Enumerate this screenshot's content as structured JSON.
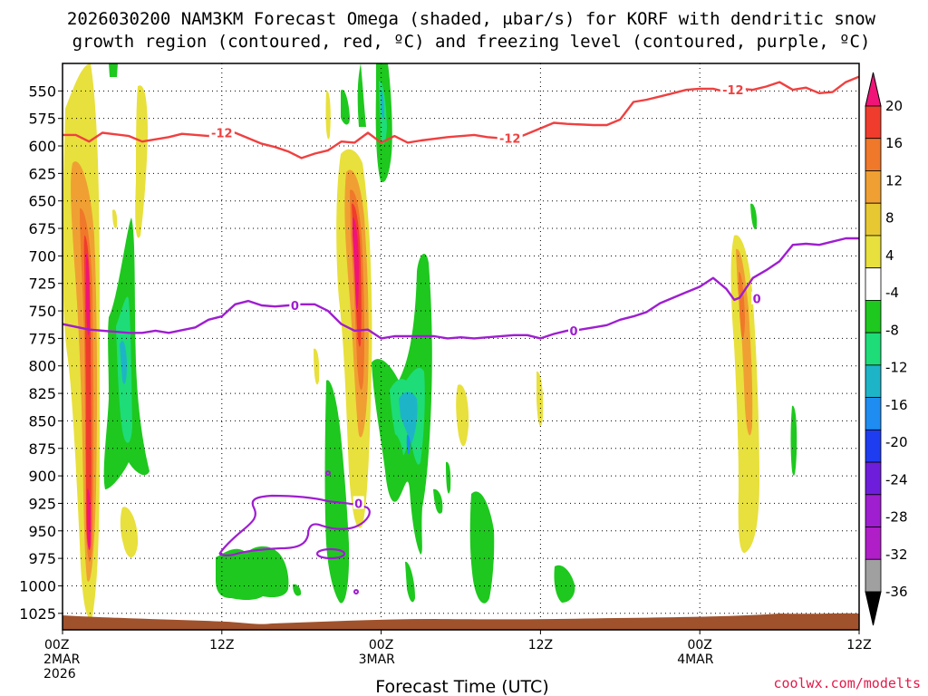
{
  "title_line1": "2026030200 NAM3KM Forecast Omega (shaded, μbar/s) for KORF with dendritic snow",
  "title_line2": "growth region (contoured, red, ºC) and freezing level (contoured, purple, ºC)",
  "credit": "coolwx.com/modelts",
  "chart_data": {
    "type": "heatmap",
    "title": "2026030200 NAM3KM Forecast Omega (shaded, μbar/s) for KORF with dendritic snow growth region (contoured, red, ºC) and freezing level (contoured, purple, ºC)",
    "xlabel": "Forecast Time (UTC)",
    "ylabel": "",
    "x_range_hours": [
      0,
      60
    ],
    "y_range_hpa": [
      1040,
      525
    ],
    "y_ticks": [
      550,
      575,
      600,
      625,
      650,
      675,
      700,
      725,
      750,
      775,
      800,
      825,
      850,
      875,
      900,
      925,
      950,
      975,
      1000,
      1025
    ],
    "x_ticks": [
      {
        "hour": 0,
        "label": "00Z",
        "sub1": "2MAR",
        "sub2": "2026"
      },
      {
        "hour": 12,
        "label": "12Z",
        "sub1": "",
        "sub2": ""
      },
      {
        "hour": 24,
        "label": "00Z",
        "sub1": "3MAR",
        "sub2": ""
      },
      {
        "hour": 36,
        "label": "12Z",
        "sub1": "",
        "sub2": ""
      },
      {
        "hour": 48,
        "label": "00Z",
        "sub1": "4MAR",
        "sub2": ""
      },
      {
        "hour": 60,
        "label": "12Z",
        "sub1": "",
        "sub2": ""
      }
    ],
    "grid": true,
    "colorbar": {
      "labels": [
        "20",
        "16",
        "12",
        "8",
        "4",
        "-4",
        "-8",
        "-12",
        "-16",
        "-20",
        "-24",
        "-28",
        "-32",
        "-36"
      ],
      "colors": [
        "#f01478",
        "#f03c2d",
        "#f0782a",
        "#f0a033",
        "#e8c832",
        "#e8e03c",
        "#ffffff",
        "#1ec81e",
        "#1edc78",
        "#1eb4c8",
        "#1e8cf0",
        "#1e3cf0",
        "#6e1eda",
        "#9e1ed0",
        "#b01ec8",
        "#a0a0a0",
        "#000000"
      ]
    },
    "series": [
      {
        "name": "-12",
        "color": "#f04040",
        "points": [
          [
            0,
            590
          ],
          [
            1,
            590
          ],
          [
            2,
            596
          ],
          [
            3,
            588
          ],
          [
            5,
            591
          ],
          [
            6,
            596
          ],
          [
            8,
            592
          ],
          [
            9,
            589
          ],
          [
            11,
            591
          ],
          [
            12,
            586
          ],
          [
            13,
            588
          ],
          [
            15,
            598
          ],
          [
            16,
            601
          ],
          [
            17,
            605
          ],
          [
            18,
            611
          ],
          [
            19,
            607
          ],
          [
            20,
            604
          ],
          [
            21,
            596
          ],
          [
            22,
            597
          ],
          [
            23,
            588
          ],
          [
            24,
            597
          ],
          [
            25,
            591
          ],
          [
            26,
            597
          ],
          [
            27,
            595
          ],
          [
            29,
            592
          ],
          [
            31,
            590
          ],
          [
            32,
            592
          ],
          [
            34,
            594
          ],
          [
            36,
            584
          ],
          [
            37,
            579
          ],
          [
            38,
            580
          ],
          [
            40,
            581
          ],
          [
            41,
            581
          ],
          [
            42,
            576
          ],
          [
            43,
            560
          ],
          [
            44,
            558
          ],
          [
            45,
            555
          ],
          [
            46,
            552
          ],
          [
            47,
            549
          ],
          [
            48,
            548
          ],
          [
            49,
            548
          ],
          [
            50,
            551
          ],
          [
            51,
            548
          ],
          [
            52,
            549
          ],
          [
            53,
            546
          ],
          [
            54,
            542
          ],
          [
            55,
            549
          ],
          [
            56,
            547
          ],
          [
            57,
            552
          ],
          [
            58,
            551
          ],
          [
            59,
            542
          ],
          [
            60,
            537
          ]
        ],
        "labels": [
          {
            "x": 12,
            "y": 588,
            "text": "-12"
          },
          {
            "x": 33.7,
            "y": 593,
            "text": "-12"
          },
          {
            "x": 50.5,
            "y": 549,
            "text": "-12"
          }
        ]
      },
      {
        "name": "0",
        "color": "#9e1ed0",
        "points": [
          [
            0,
            762
          ],
          [
            2,
            767
          ],
          [
            5,
            770
          ],
          [
            6,
            770
          ],
          [
            7,
            768
          ],
          [
            8,
            770
          ],
          [
            10,
            765
          ],
          [
            11,
            758
          ],
          [
            12,
            755
          ],
          [
            13,
            744
          ],
          [
            14,
            741
          ],
          [
            15,
            745
          ],
          [
            16,
            746
          ],
          [
            17,
            745
          ],
          [
            18,
            744
          ],
          [
            19,
            744
          ],
          [
            20,
            750
          ],
          [
            21,
            762
          ],
          [
            22,
            768
          ],
          [
            23,
            767
          ],
          [
            24,
            775
          ],
          [
            25,
            773
          ],
          [
            26,
            773
          ],
          [
            27,
            773
          ],
          [
            28,
            773
          ],
          [
            29,
            775
          ],
          [
            30,
            774
          ],
          [
            31,
            775
          ],
          [
            32,
            774
          ],
          [
            34,
            772
          ],
          [
            35,
            772
          ],
          [
            36,
            775
          ],
          [
            37,
            771
          ],
          [
            38,
            768
          ],
          [
            39,
            767
          ],
          [
            40,
            765
          ],
          [
            41,
            763
          ],
          [
            42,
            758
          ],
          [
            43,
            755
          ],
          [
            44,
            751
          ],
          [
            45,
            743
          ],
          [
            46,
            738
          ],
          [
            47,
            733
          ],
          [
            48,
            728
          ],
          [
            49,
            720
          ],
          [
            50,
            730
          ],
          [
            50.6,
            740
          ],
          [
            51,
            738
          ],
          [
            52,
            720
          ],
          [
            53,
            713
          ],
          [
            54,
            705
          ],
          [
            55,
            690
          ],
          [
            56,
            689
          ],
          [
            57,
            690
          ],
          [
            58,
            687
          ],
          [
            59,
            684
          ],
          [
            60,
            684
          ]
        ],
        "labels": [
          {
            "x": 17.5,
            "y": 745,
            "text": "0"
          },
          {
            "x": 38.5,
            "y": 768,
            "text": "0"
          },
          {
            "x": 52.3,
            "y": 739,
            "text": "0"
          },
          {
            "x": 22.3,
            "y": 925,
            "text": "0"
          }
        ]
      }
    ]
  }
}
